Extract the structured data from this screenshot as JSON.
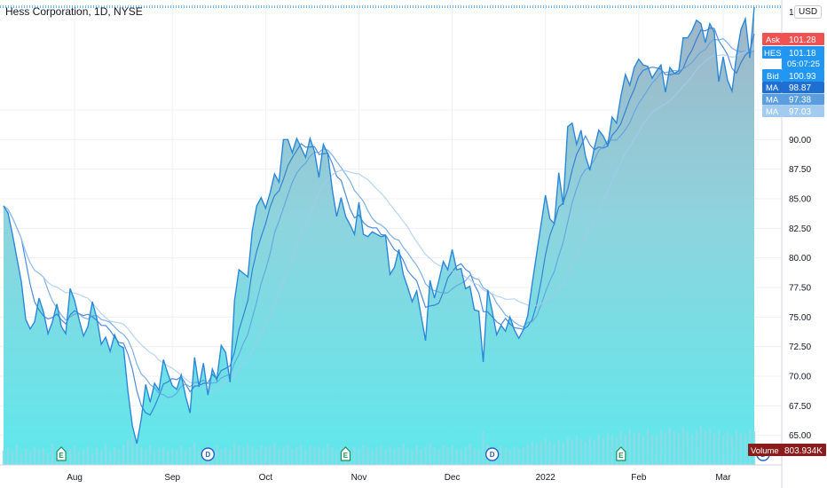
{
  "header": {
    "title": "Hess Corporation, 1D, NYSE",
    "currency": "USD"
  },
  "colors": {
    "price_line": "#2a88d8",
    "area_top": "#9fb4c6",
    "area_bottom": "#5fe8ec",
    "volume": "#8ed9e6",
    "ma_colors": [
      "#1f6fd1",
      "#5b9ee0",
      "#a2cbef"
    ],
    "ask": "#f05252",
    "bid": "#2196f3",
    "hes": "#2196f3",
    "ma_label": "#2a7fe0",
    "volume_label": "#8b1c1c",
    "grid": "#eef0f4"
  },
  "chart_data": {
    "type": "area",
    "symbol": "HES",
    "ylim": [
      62.5,
      101.8
    ],
    "yticks": [
      65.0,
      67.5,
      70.0,
      72.5,
      75.0,
      77.5,
      80.0,
      82.5,
      85.0,
      87.5,
      90.0,
      92.5
    ],
    "ytick_labels": [
      "65.00",
      "67.50",
      "70.00",
      "72.50",
      "75.00",
      "77.50",
      "80.00",
      "82.50",
      "85.00",
      "87.50",
      "90.00",
      "92.50"
    ],
    "top_tick_label": "10",
    "x_labels": [
      {
        "label": "Aug",
        "index": 16
      },
      {
        "label": "Sep",
        "index": 38
      },
      {
        "label": "Oct",
        "index": 59
      },
      {
        "label": "Nov",
        "index": 80
      },
      {
        "label": "Dec",
        "index": 101
      },
      {
        "label": "2022",
        "index": 122
      },
      {
        "label": "Feb",
        "index": 143
      },
      {
        "label": "Mar",
        "index": 162
      }
    ],
    "events": [
      {
        "type": "E",
        "index": 13
      },
      {
        "type": "D",
        "index": 46
      },
      {
        "type": "E",
        "index": 77
      },
      {
        "type": "D",
        "index": 110
      },
      {
        "type": "E",
        "index": 139
      },
      {
        "type": "D",
        "index": 171
      }
    ],
    "close": [
      84.4,
      83.8,
      82,
      80,
      78,
      74.8,
      74,
      74.6,
      76.6,
      75.4,
      73.6,
      74.6,
      76.1,
      74.2,
      73.6,
      77.4,
      76.4,
      74.8,
      73.4,
      74.2,
      76.3,
      74.9,
      72.7,
      73.3,
      72.1,
      73.5,
      72.6,
      72.4,
      68.7,
      65.8,
      64.3,
      66.4,
      69.3,
      67.8,
      69.4,
      68.8,
      71.4,
      70.2,
      69.2,
      68.9,
      70.1,
      68.3,
      66.9,
      71.6,
      69.1,
      71.1,
      68.4,
      70.6,
      69.7,
      72.6,
      72.0,
      69.5,
      76.4,
      79.0,
      78.7,
      78.4,
      82.3,
      84.4,
      85.1,
      84.2,
      85.5,
      87.1,
      86.4,
      90.0,
      90.0,
      88.9,
      90.1,
      89.3,
      88.5,
      90.1,
      89.0,
      86.8,
      89.6,
      88.8,
      85.8,
      83.5,
      85.1,
      83.5,
      82.8,
      82.0,
      84.7,
      82.0,
      81.8,
      82.2,
      82.0,
      81.8,
      81.9,
      78.6,
      79.2,
      80.7,
      78.6,
      77.5,
      76.3,
      77.2,
      75.1,
      73.0,
      78.1,
      76.6,
      78.1,
      79.7,
      79.0,
      80.7,
      79.0,
      79.1,
      77.4,
      77.6,
      75.6,
      75.5,
      71.2,
      77.3,
      75.5,
      73.5,
      74.3,
      73.8,
      75.0,
      73.9,
      73.2,
      73.9,
      75.1,
      77.8,
      80.3,
      82.8,
      85.3,
      83.3,
      82.9,
      87.2,
      84.5,
      91.1,
      91.4,
      89.6,
      90.8,
      88.6,
      87.4,
      89.3,
      90.8,
      90.3,
      89.5,
      91.9,
      91.4,
      93.7,
      95.5,
      94.6,
      96.1,
      96.8,
      96.3,
      96.2,
      95.2,
      95.8,
      96.3,
      94.0,
      96.1,
      95.6,
      95.8,
      98.6,
      98.6,
      99.2,
      100.1,
      99.8,
      98.2,
      99.8,
      99.1,
      94.9,
      97.0,
      95.0,
      94.1,
      97.1,
      99.3,
      100.2,
      96.9,
      101.2
    ],
    "ma_series": [
      {
        "name": "MA",
        "last": 98.87,
        "period": 5
      },
      {
        "name": "MA",
        "last": 97.38,
        "period": 10
      },
      {
        "name": "MA",
        "last": 97.03,
        "period": 20
      }
    ],
    "volume": [
      18,
      22,
      16,
      25,
      14,
      20,
      17,
      23,
      19,
      21,
      15,
      26,
      18,
      22,
      17,
      20,
      24,
      16,
      19,
      23,
      15,
      21,
      18,
      26,
      17,
      22,
      19,
      24,
      31,
      38,
      27,
      22,
      20,
      25,
      18,
      21,
      23,
      17,
      20,
      19,
      24,
      18,
      22,
      28,
      19,
      21,
      23,
      17,
      25,
      20,
      22,
      19,
      27,
      24,
      21,
      26,
      23,
      20,
      25,
      22,
      24,
      27,
      21,
      23,
      26,
      20,
      22,
      25,
      19,
      24,
      21,
      23,
      20,
      26,
      22,
      18,
      24,
      21,
      19,
      23,
      20,
      25,
      22,
      18,
      21,
      24,
      19,
      23,
      20,
      22,
      26,
      21,
      18,
      24,
      20,
      23,
      27,
      22,
      19,
      25,
      21,
      24,
      20,
      18,
      23,
      26,
      21,
      19,
      42,
      25,
      22,
      20,
      24,
      21,
      19,
      23,
      20,
      22,
      25,
      28,
      26,
      30,
      33,
      29,
      27,
      31,
      28,
      34,
      30,
      36,
      32,
      29,
      35,
      31,
      38,
      33,
      40,
      36,
      34,
      42,
      37,
      45,
      39,
      41,
      35,
      44,
      38,
      36,
      43,
      40,
      47,
      42,
      39,
      46,
      41,
      38,
      44,
      48,
      42,
      45,
      39,
      43,
      37,
      41,
      36,
      44,
      40,
      38,
      45,
      42
    ],
    "quotes": {
      "ask": {
        "label": "Ask",
        "value": "101.28"
      },
      "hes": {
        "label": "HES",
        "value": "101.18",
        "countdown": "05:07:25"
      },
      "bid": {
        "label": "Bid",
        "value": "100.93"
      },
      "ma": [
        {
          "label": "MA",
          "value": "98.87"
        },
        {
          "label": "MA",
          "value": "97.38"
        },
        {
          "label": "MA",
          "value": "97.03"
        }
      ],
      "volume": {
        "label": "Volume",
        "value": "803.934K"
      }
    }
  }
}
